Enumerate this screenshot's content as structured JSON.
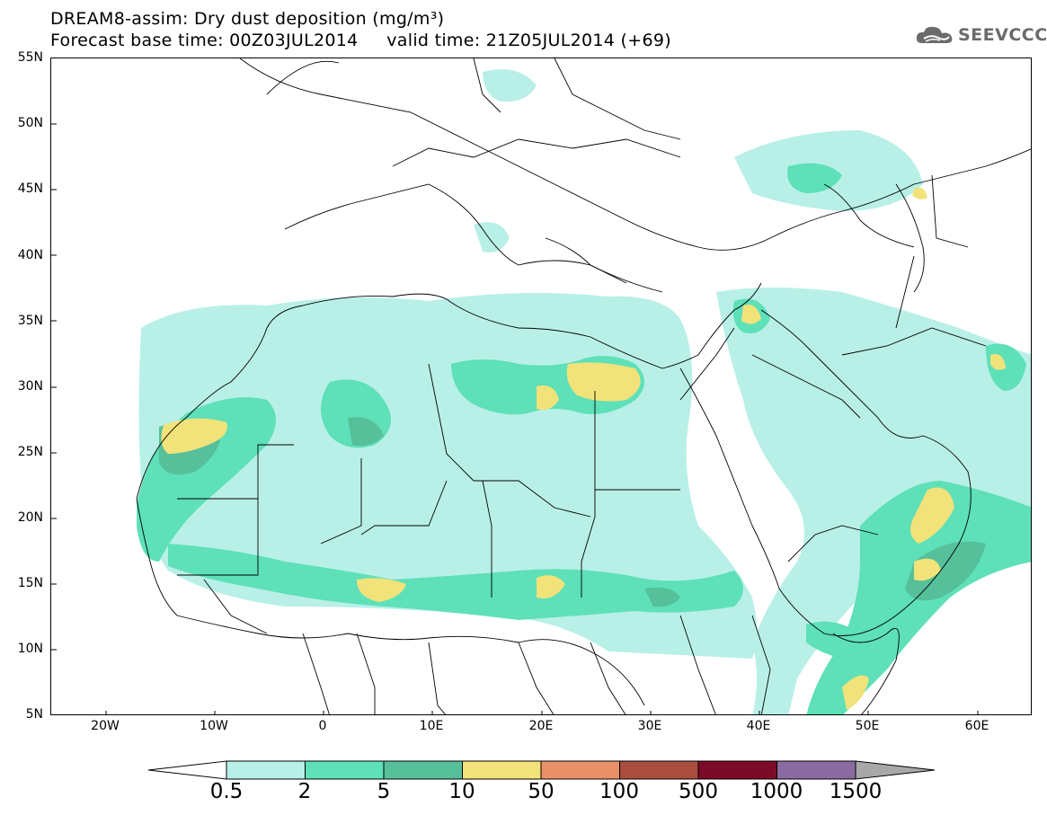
{
  "header": {
    "title_line1": "DREAM8-assim: Dry dust deposition (mg/m³)",
    "title_line2": "Forecast base time: 00Z03JUL2014     valid time: 21Z05JUL2014 (+69)",
    "logo_text": "SEEVCCC"
  },
  "axes": {
    "lat_labels": [
      "55N",
      "50N",
      "45N",
      "40N",
      "35N",
      "30N",
      "25N",
      "20N",
      "15N",
      "10N",
      "5N"
    ],
    "lon_labels": [
      "20W",
      "10W",
      "0",
      "10E",
      "20E",
      "30E",
      "40E",
      "50E",
      "60E"
    ]
  },
  "colorbar": {
    "labels": [
      "0.5",
      "2",
      "5",
      "10",
      "50",
      "100",
      "500",
      "1000",
      "1500"
    ],
    "colors": [
      "#b8f0e8",
      "#5ee0b8",
      "#56c09a",
      "#f2e27a",
      "#ea9068",
      "#aa4c3e",
      "#7c0b2a",
      "#8a6aa0",
      "#a8a8a8"
    ],
    "under_color": "#ffffff"
  },
  "map": {
    "lon_range": [
      -25,
      65
    ],
    "lat_range": [
      5,
      55
    ],
    "background": "#ffffff",
    "border_color": "#000000"
  }
}
